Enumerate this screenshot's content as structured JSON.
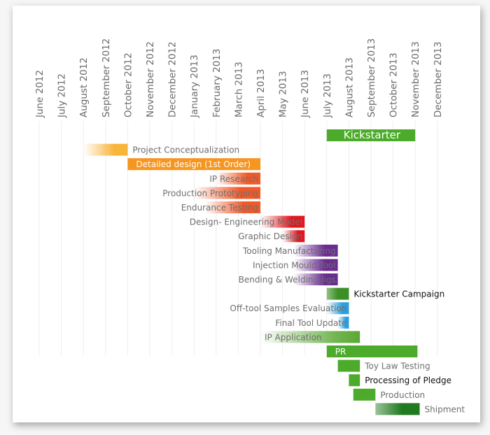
{
  "chart_data": {
    "type": "gantt",
    "months": [
      "June 2012",
      "July 2012",
      "August 2012",
      "September 2012",
      "October 2012",
      "November 2012",
      "December 2012",
      "January 2013",
      "February 2013",
      "March 2013",
      "April 2013",
      "May 2013",
      "June 2013",
      "July 2013",
      "August 2013",
      "September 2013",
      "October 2013",
      "November 2013",
      "December 2013"
    ],
    "tasks": [
      {
        "name": "Kickstarter",
        "start": 13.0,
        "end": 17.0,
        "color": "#4cab2a",
        "gradient": "solid",
        "label_pos": "inside",
        "label_color": "white",
        "label_size": "big"
      },
      {
        "name": "Project Conceptualization",
        "start": 2.0,
        "end": 4.0,
        "color": "#f9b43a",
        "gradient": "fade-left",
        "label_pos": "right"
      },
      {
        "name": "Detailed design (1st Order)",
        "start": 4.0,
        "end": 10.0,
        "color": "#f6951f",
        "gradient": "solid",
        "label_pos": "inside",
        "label_color": "white"
      },
      {
        "name": "IP Research",
        "start": 8.0,
        "end": 10.0,
        "color": "#f05a28",
        "gradient": "fade-left",
        "label_pos": "left"
      },
      {
        "name": "Production Prototyping",
        "start": 7.0,
        "end": 10.0,
        "color": "#f05a28",
        "gradient": "fade-left",
        "label_pos": "left"
      },
      {
        "name": "Endurance Testing",
        "start": 7.5,
        "end": 10.0,
        "color": "#f05a28",
        "gradient": "fade-left",
        "label_pos": "left"
      },
      {
        "name": "Design- Engineering Model",
        "start": 10.0,
        "end": 12.0,
        "color": "#e3161e",
        "gradient": "fade-left",
        "label_pos": "left"
      },
      {
        "name": "Graphic Design",
        "start": 11.0,
        "end": 12.0,
        "color": "#e3161e",
        "gradient": "fade-left",
        "label_pos": "left"
      },
      {
        "name": "Tooling Manufacturing",
        "start": 11.5,
        "end": 13.5,
        "color": "#6a2c91",
        "gradient": "fade-left",
        "label_pos": "left"
      },
      {
        "name": "Injection Mould Tool",
        "start": 11.5,
        "end": 13.5,
        "color": "#6a2c91",
        "gradient": "fade-left",
        "label_pos": "left"
      },
      {
        "name": "Bending & Welding Jigs",
        "start": 11.5,
        "end": 13.5,
        "color": "#6a2c91",
        "gradient": "fade-left",
        "label_pos": "left"
      },
      {
        "name": "Kickstarter Campaign",
        "start": 13.0,
        "end": 14.0,
        "color": "#3c8f24",
        "gradient": "fade-left-soft",
        "label_pos": "right",
        "label_color": "dark"
      },
      {
        "name": "Off-tool Samples Evaluation",
        "start": 13.0,
        "end": 14.0,
        "color": "#2b9fe0",
        "gradient": "fade-left",
        "label_pos": "left"
      },
      {
        "name": "Final Tool Update",
        "start": 13.5,
        "end": 14.0,
        "color": "#2b9fe0",
        "gradient": "fade-left",
        "label_pos": "left"
      },
      {
        "name": "IP Application",
        "start": 10.0,
        "end": 14.5,
        "color": "#5aa833",
        "gradient": "fade-left-overlay",
        "label_pos": "inside-left"
      },
      {
        "name": "PR",
        "start": 13.0,
        "end": 17.1,
        "color": "#4cab2a",
        "gradient": "solid",
        "label_pos": "inside",
        "label_color": "white"
      },
      {
        "name": "Toy Law Testing",
        "start": 13.5,
        "end": 14.5,
        "color": "#4cab2a",
        "gradient": "solid",
        "label_pos": "right"
      },
      {
        "name": "Processing of Pledge",
        "start": 14.0,
        "end": 14.5,
        "color": "#4cab2a",
        "gradient": "solid",
        "label_pos": "right",
        "label_color": "dark"
      },
      {
        "name": "Production",
        "start": 14.2,
        "end": 15.2,
        "color": "#4cab2a",
        "gradient": "solid",
        "label_pos": "right"
      },
      {
        "name": "Shipment",
        "start": 15.2,
        "end": 17.2,
        "color": "#1f7a20",
        "gradient": "fade-left-light",
        "label_pos": "right"
      }
    ]
  }
}
